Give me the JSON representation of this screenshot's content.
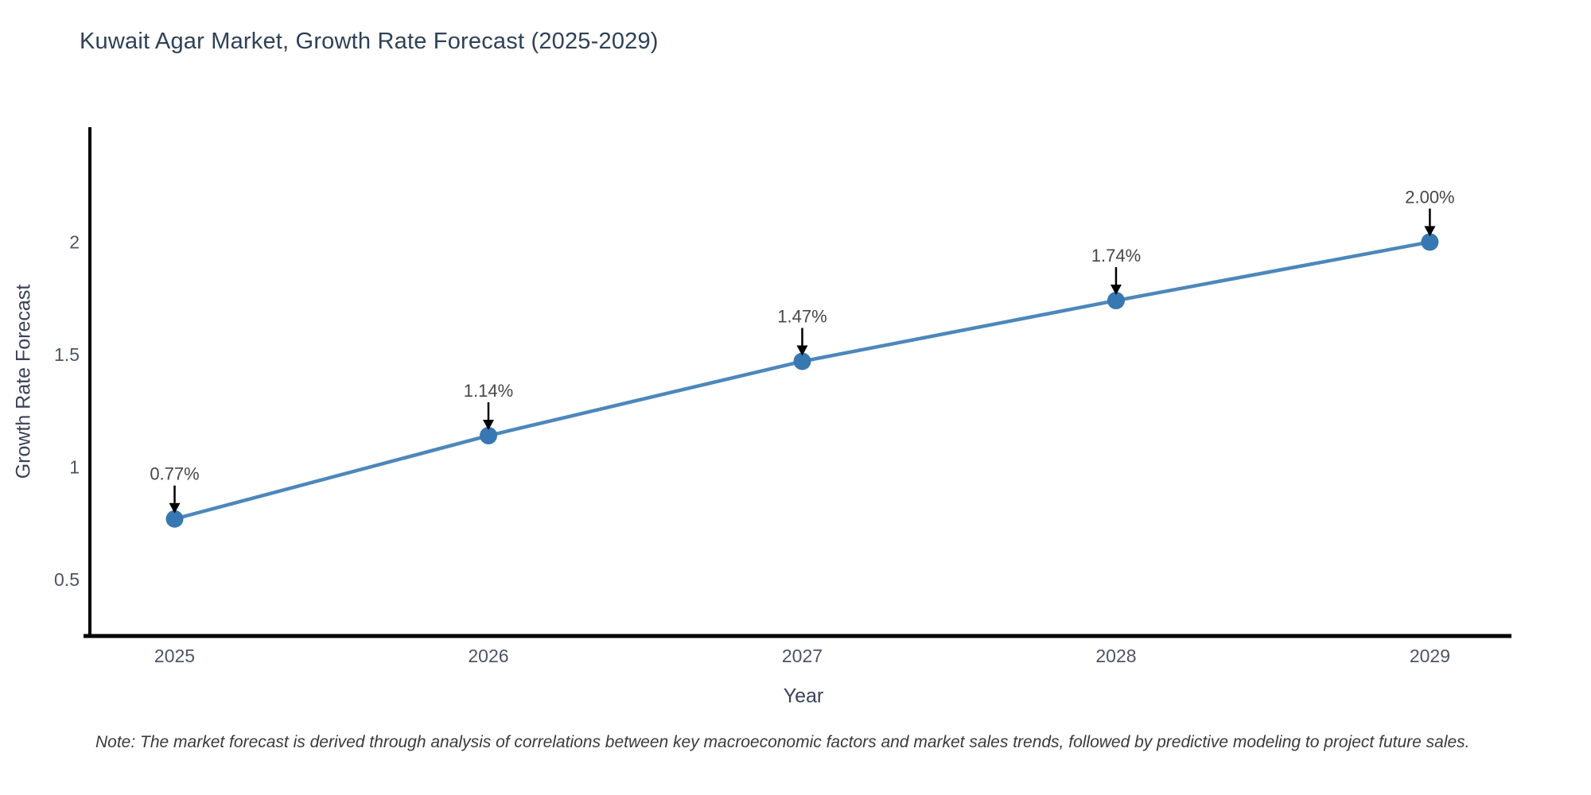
{
  "title": "Kuwait Agar Market, Growth Rate Forecast (2025-2029)",
  "note": "Note: The market forecast is derived through analysis of correlations between key macroeconomic factors and market sales trends, followed by predictive modeling to project future sales.",
  "chart_data": {
    "type": "line",
    "title": "Kuwait Agar Market, Growth Rate Forecast (2025-2029)",
    "xlabel": "Year",
    "ylabel": "Growth Rate Forecast",
    "x": [
      2025,
      2026,
      2027,
      2028,
      2029
    ],
    "x_tick_labels": [
      "2025",
      "2026",
      "2027",
      "2028",
      "2029"
    ],
    "values": [
      0.77,
      1.14,
      1.47,
      1.74,
      2.0
    ],
    "point_labels": [
      "0.77%",
      "1.14%",
      "1.47%",
      "1.74%",
      "2.00%"
    ],
    "y_ticks": [
      0.5,
      1,
      1.5,
      2
    ],
    "y_tick_labels": [
      "0.5",
      "1",
      "1.5",
      "2"
    ],
    "ylim": [
      0.25,
      2.51
    ],
    "xlim": [
      2024.73,
      2029.26
    ],
    "grid": false,
    "legend": "none",
    "annotation_style": "down-arrow-to-point",
    "colors": {
      "line": "#4d87bb",
      "marker": "#3878b2",
      "axis": "#000000",
      "title": "#2e4157",
      "tick_label": "#4d5464",
      "axis_label": "#3a4258",
      "annotation_text": "#474747",
      "annotation_arrow": "#000000",
      "note_text": "#3a3a3a",
      "background": "#ffffff"
    }
  }
}
